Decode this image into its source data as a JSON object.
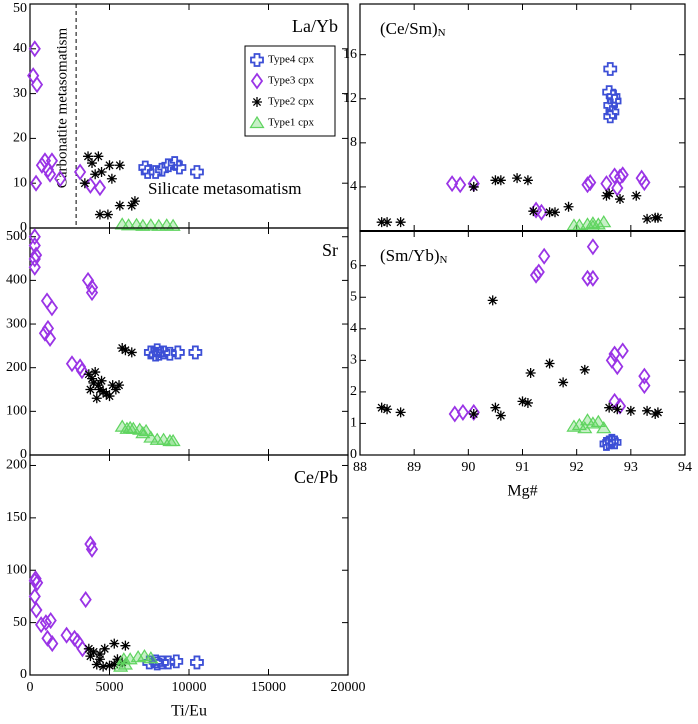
{
  "chart_data": [
    {
      "type": "scatter",
      "panel_label": "La/Yb",
      "xlim": [
        0,
        20000
      ],
      "ylim": [
        0,
        50
      ],
      "yticks": [
        0,
        10,
        20,
        30,
        40,
        50
      ],
      "legend": "upper right",
      "vline": 2900,
      "annotations": [
        "Carbonatite metasomatism",
        "Silicate metasomatism"
      ],
      "series": [
        {
          "name": "Type4 cpx",
          "color": "#3c4fd6",
          "marker": "plus",
          "x": [
            7250,
            7400,
            7900,
            8300,
            8700,
            9100,
            9400,
            10500
          ],
          "values": [
            13.5,
            12.5,
            12.5,
            13,
            14,
            14.5,
            13.5,
            12.5
          ]
        },
        {
          "name": "Type3 cpx",
          "color": "#9a34e6",
          "marker": "diamond",
          "x": [
            300,
            200,
            440,
            380,
            750,
            1130,
            940,
            1260,
            1380,
            1900,
            3150,
            3800,
            4400
          ],
          "values": [
            40,
            34,
            32,
            10,
            14,
            13,
            15,
            12,
            15,
            11,
            12.5,
            9.5,
            9
          ]
        },
        {
          "name": "Type2 cpx",
          "color": "#000000",
          "marker": "asterisk",
          "x": [
            3650,
            4300,
            3900,
            5000,
            5650,
            4100,
            4500,
            5150,
            3450,
            4400,
            4900,
            5650,
            6400,
            6600
          ],
          "values": [
            16,
            16,
            14.5,
            14,
            14,
            12,
            12.5,
            11,
            10,
            3,
            3,
            5,
            5,
            6
          ]
        },
        {
          "name": "Type1 cpx",
          "color": "#5fd45f",
          "marker": "triangle",
          "x": [
            5800,
            6200,
            6700,
            7100,
            7600,
            8100,
            8600,
            9000
          ],
          "values": [
            0.8,
            0.6,
            0.7,
            0.5,
            0.6,
            0.5,
            0.6,
            0.5
          ]
        }
      ]
    },
    {
      "type": "scatter",
      "panel_label": "Sr",
      "xlim": [
        0,
        20000
      ],
      "ylim": [
        0,
        520
      ],
      "yticks": [
        0,
        100,
        200,
        300,
        400,
        500
      ],
      "series": [
        {
          "color": "#3c4fd6",
          "marker": "plus",
          "x": [
            7600,
            7900,
            8000,
            8100,
            8400,
            8800,
            9300,
            10400
          ],
          "values": [
            235,
            230,
            240,
            232,
            235,
            232,
            235,
            235
          ]
        },
        {
          "color": "#9a34e6",
          "marker": "diamond",
          "x": [
            300,
            300,
            380,
            300,
            300,
            1070,
            1380,
            940,
            1260,
            1130,
            2640,
            3150,
            3270,
            3650,
            3900,
            3900
          ],
          "values": [
            500,
            480,
            458,
            449,
            430,
            353,
            337,
            279,
            267,
            290,
            209,
            202,
            193,
            400,
            384,
            372
          ]
        },
        {
          "color": "#000000",
          "marker": "asterisk",
          "x": [
            3700,
            3900,
            4100,
            4300,
            4400,
            4600,
            4800,
            5000,
            4500,
            5200,
            5400,
            3800,
            4200,
            5800,
            6000,
            6400,
            4000,
            5600
          ],
          "values": [
            185,
            175,
            190,
            160,
            150,
            145,
            140,
            135,
            170,
            160,
            150,
            150,
            130,
            245,
            240,
            235,
            165,
            160
          ]
        },
        {
          "color": "#5fd45f",
          "marker": "triangle",
          "x": [
            5800,
            6100,
            6300,
            6500,
            6900,
            7100,
            7300,
            7600,
            8000,
            8400,
            8800,
            9000
          ],
          "values": [
            65,
            60,
            62,
            60,
            58,
            50,
            55,
            40,
            35,
            35,
            32,
            32
          ]
        }
      ]
    },
    {
      "type": "scatter",
      "panel_label": "Ce/Pb",
      "xlim": [
        0,
        20000
      ],
      "ylim": [
        0,
        210
      ],
      "yticks": [
        0,
        50,
        100,
        150,
        200
      ],
      "xticks": [
        0,
        5000,
        10000,
        15000,
        20000
      ],
      "x_label": "Ti/Eu",
      "series": [
        {
          "color": "#3c4fd6",
          "marker": "plus",
          "x": [
            7500,
            7900,
            8000,
            8300,
            8700,
            9200,
            10500
          ],
          "values": [
            12,
            13,
            11,
            12,
            12,
            13,
            12
          ]
        },
        {
          "color": "#9a34e6",
          "marker": "diamond",
          "x": [
            300,
            350,
            450,
            300,
            400,
            700,
            1000,
            1300,
            1100,
            1400,
            2300,
            2800,
            3000,
            3500,
            3800,
            3900,
            3300
          ],
          "values": [
            90,
            92,
            88,
            75,
            62,
            48,
            50,
            52,
            35,
            30,
            38,
            35,
            32,
            72,
            125,
            120,
            25
          ]
        },
        {
          "color": "#000000",
          "marker": "asterisk",
          "x": [
            3700,
            4000,
            4400,
            4700,
            4200,
            4600,
            5000,
            5300,
            5500,
            5800,
            5300,
            6000,
            4400,
            3800
          ],
          "values": [
            25,
            22,
            20,
            25,
            10,
            8,
            9,
            10,
            15,
            12,
            30,
            28,
            15,
            18
          ]
        },
        {
          "color": "#5fd45f",
          "marker": "triangle",
          "x": [
            5900,
            6300,
            6800,
            7200,
            7600,
            5700,
            6000
          ],
          "values": [
            15,
            15,
            17,
            18,
            16,
            8,
            10
          ]
        }
      ]
    },
    {
      "type": "scatter",
      "panel_label": "(Ce/Sm)",
      "panel_label_sub": "N",
      "xlim": [
        88,
        94
      ],
      "ylim": [
        0,
        20.6
      ],
      "yticks": [
        4,
        8,
        12,
        16
      ],
      "series": [
        {
          "color": "#3c4fd6",
          "marker": "plus",
          "x": [
            92.62,
            92.6,
            92.68,
            92.62,
            92.66,
            92.62,
            92.7
          ],
          "values": [
            14.7,
            12.6,
            12.2,
            11.4,
            10.8,
            10.4,
            11.8
          ]
        },
        {
          "color": "#9a34e6",
          "marker": "diamond",
          "x": [
            89.7,
            89.85,
            90.1,
            91.25,
            91.35,
            92.2,
            92.25,
            92.55,
            92.7,
            92.8,
            92.85,
            93.2,
            93.25,
            92.75
          ],
          "values": [
            4.3,
            4.2,
            4.3,
            1.9,
            1.7,
            4.2,
            4.4,
            4.3,
            5.0,
            4.9,
            5.1,
            4.8,
            4.4,
            3.9
          ]
        },
        {
          "color": "#000000",
          "marker": "asterisk",
          "x": [
            88.4,
            88.5,
            88.75,
            90.1,
            90.5,
            90.6,
            90.9,
            91.1,
            91.2,
            91.5,
            91.6,
            91.85,
            92.55,
            92.6,
            92.8,
            93.1,
            93.3,
            93.45,
            93.5
          ],
          "values": [
            0.8,
            0.8,
            0.8,
            4.0,
            4.6,
            4.6,
            4.8,
            4.6,
            1.8,
            1.7,
            1.7,
            2.2,
            3.2,
            3.4,
            2.9,
            3.2,
            1.1,
            1.2,
            1.2
          ]
        },
        {
          "color": "#5fd45f",
          "marker": "triangle",
          "x": [
            91.95,
            92.05,
            92.2,
            92.3,
            92.4,
            92.5,
            92.3
          ],
          "values": [
            0.5,
            0.5,
            0.6,
            0.7,
            0.6,
            0.8,
            0.4
          ]
        }
      ]
    },
    {
      "type": "scatter",
      "panel_label": "(Sm/Yb)",
      "panel_label_sub": "N",
      "xlim": [
        88,
        94
      ],
      "ylim": [
        0,
        7.1
      ],
      "yticks": [
        0,
        1,
        2,
        3,
        4,
        5,
        6
      ],
      "xticks": [
        88,
        89,
        90,
        91,
        92,
        93,
        94
      ],
      "x_label": "Mg#",
      "series": [
        {
          "color": "#3c4fd6",
          "marker": "plus",
          "x": [
            92.6,
            92.65,
            92.7,
            92.55
          ],
          "values": [
            0.4,
            0.45,
            0.4,
            0.35
          ]
        },
        {
          "color": "#9a34e6",
          "marker": "diamond",
          "x": [
            89.75,
            89.9,
            90.1,
            91.25,
            91.3,
            91.4,
            92.2,
            92.3,
            92.3,
            92.65,
            92.7,
            92.85,
            92.75,
            93.25,
            93.25,
            92.8,
            92.7
          ],
          "values": [
            1.3,
            1.35,
            1.35,
            5.7,
            5.8,
            6.3,
            5.6,
            5.6,
            6.6,
            3.0,
            3.2,
            3.3,
            2.8,
            2.5,
            2.2,
            1.55,
            1.7
          ]
        },
        {
          "color": "#000000",
          "marker": "asterisk",
          "x": [
            88.4,
            88.5,
            88.75,
            90.1,
            90.45,
            90.5,
            90.6,
            91.0,
            91.1,
            91.15,
            91.5,
            91.75,
            92.15,
            92.6,
            92.75,
            93.0,
            93.3,
            93.45,
            93.5
          ],
          "values": [
            1.5,
            1.45,
            1.35,
            1.3,
            4.9,
            1.5,
            1.25,
            1.7,
            1.65,
            2.6,
            2.9,
            2.3,
            2.7,
            1.5,
            1.45,
            1.4,
            1.4,
            1.3,
            1.35
          ]
        },
        {
          "color": "#5fd45f",
          "marker": "triangle",
          "x": [
            91.95,
            92.05,
            92.15,
            92.3,
            92.4,
            92.5,
            92.2
          ],
          "values": [
            0.9,
            0.95,
            0.85,
            1.0,
            1.05,
            0.85,
            1.1
          ]
        }
      ]
    }
  ]
}
